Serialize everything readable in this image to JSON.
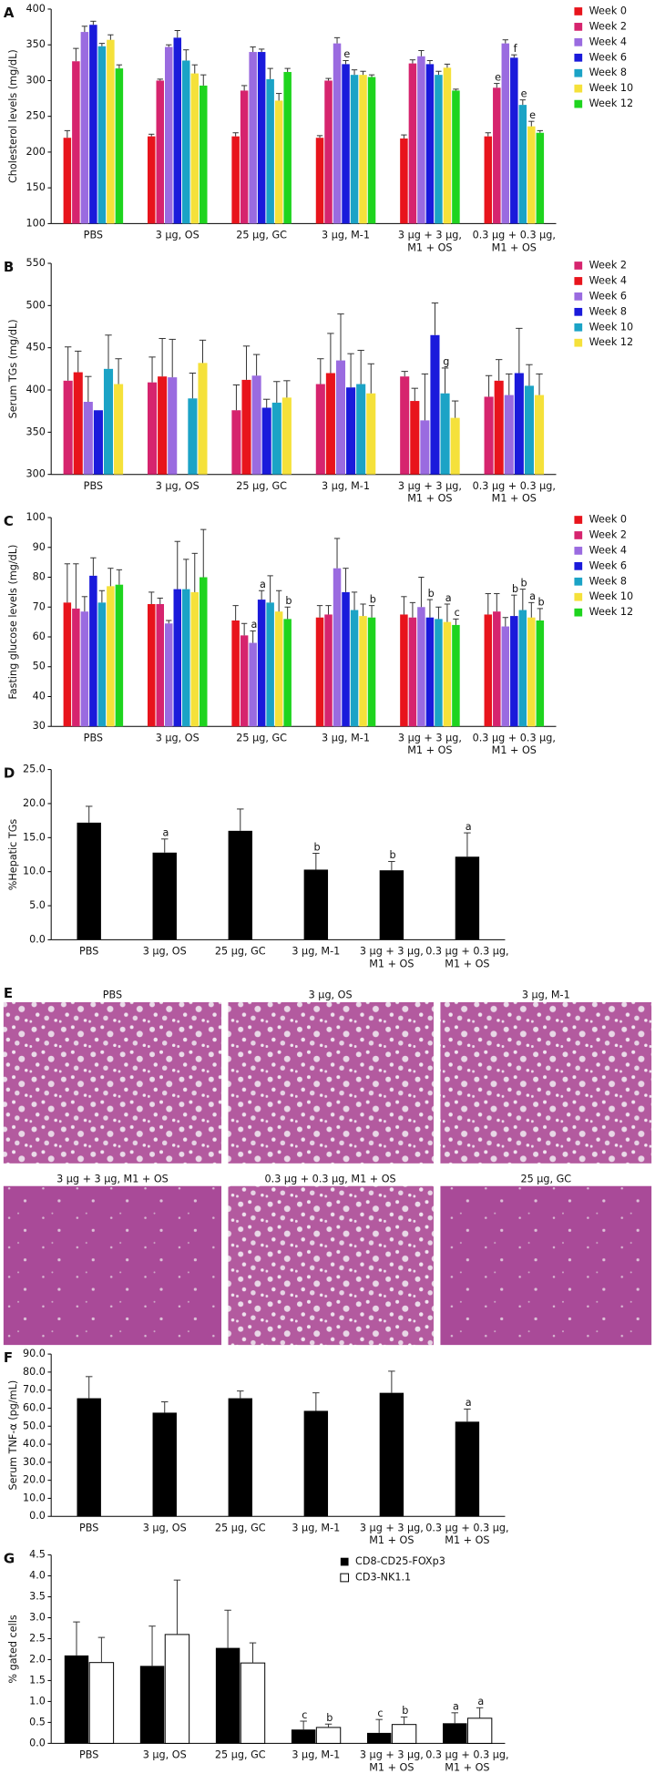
{
  "chart_data": [
    {
      "type": "bar",
      "label": "A",
      "ylabel": "Cholesterol levels (mg/dL)",
      "legend": "right",
      "categories": [
        "PBS",
        "3 µg, OS",
        "25 µg, GC",
        "3 µg, M-1",
        "3 µg + 3 µg,\nM1 + OS",
        "0.3 µg + 0.3 µg,\nM1 + OS"
      ],
      "ylim": [
        100,
        400
      ],
      "yticks": [
        100,
        150,
        200,
        250,
        300,
        350,
        400
      ],
      "series": [
        {
          "name": "Week 0",
          "color": "#e8141c",
          "values": [
            220,
            222,
            222,
            220,
            219,
            222
          ],
          "errors": [
            10,
            3,
            5,
            3,
            5,
            5
          ]
        },
        {
          "name": "Week 2",
          "color": "#d6246e",
          "values": [
            327,
            300,
            286,
            300,
            324,
            290
          ],
          "errors": [
            18,
            2,
            7,
            3,
            5,
            6
          ],
          "annotations": [
            null,
            null,
            null,
            null,
            null,
            "e"
          ]
        },
        {
          "name": "Week 4",
          "color": "#9a6be0",
          "values": [
            368,
            347,
            340,
            352,
            334,
            352
          ],
          "errors": [
            8,
            3,
            7,
            8,
            8,
            5
          ]
        },
        {
          "name": "Week 6",
          "color": "#1a1adb",
          "values": [
            378,
            360,
            340,
            323,
            323,
            332
          ],
          "errors": [
            5,
            10,
            4,
            5,
            5,
            4
          ],
          "annotations": [
            null,
            null,
            null,
            "e",
            null,
            "f"
          ]
        },
        {
          "name": "Week 8",
          "color": "#1ba3c6",
          "values": [
            348,
            328,
            302,
            308,
            308,
            266
          ],
          "errors": [
            4,
            15,
            15,
            7,
            5,
            7
          ],
          "annotations": [
            null,
            null,
            null,
            null,
            null,
            "e"
          ]
        },
        {
          "name": "Week 10",
          "color": "#f5e13a",
          "values": [
            357,
            310,
            272,
            308,
            318,
            236
          ],
          "errors": [
            7,
            12,
            10,
            5,
            5,
            7
          ],
          "annotations": [
            null,
            null,
            null,
            null,
            null,
            "e"
          ]
        },
        {
          "name": "Week 12",
          "color": "#1ed41e",
          "values": [
            317,
            293,
            312,
            305,
            286,
            227
          ],
          "errors": [
            5,
            15,
            5,
            3,
            2,
            3
          ]
        }
      ]
    },
    {
      "type": "bar",
      "label": "B",
      "ylabel": "Serum TGs (mg/dL)",
      "legend": "right",
      "categories": [
        "PBS",
        "3 µg, OS",
        "25 µg, GC",
        "3 µg, M-1",
        "3 µg + 3 µg,\nM1 + OS",
        "0.3 µg + 0.3 µg,\nM1 + OS"
      ],
      "ylim": [
        300,
        550
      ],
      "yticks": [
        300,
        350,
        400,
        450,
        500,
        550
      ],
      "series": [
        {
          "name": "Week 2",
          "color": "#d6246e",
          "values": [
            411,
            409,
            376,
            407,
            416,
            392
          ],
          "errors": [
            40,
            30,
            30,
            30,
            6,
            25
          ]
        },
        {
          "name": "Week 4",
          "color": "#e8141c",
          "values": [
            421,
            416,
            412,
            420,
            387,
            411
          ],
          "errors": [
            25,
            45,
            40,
            47,
            15,
            25
          ]
        },
        {
          "name": "Week 6",
          "color": "#9a6be0",
          "values": [
            386,
            415,
            417,
            435,
            364,
            394
          ],
          "errors": [
            30,
            45,
            25,
            55,
            55,
            25
          ]
        },
        {
          "name": "Week 8",
          "color": "#1a1adb",
          "values": [
            376,
            null,
            379,
            403,
            465,
            420
          ],
          "errors": [
            null,
            null,
            10,
            40,
            38,
            53
          ]
        },
        {
          "name": "Week 10",
          "color": "#1ba3c6",
          "values": [
            425,
            390,
            385,
            407,
            396,
            405
          ],
          "errors": [
            40,
            30,
            25,
            40,
            30,
            25
          ],
          "annotations": [
            null,
            null,
            null,
            null,
            "g",
            null
          ]
        },
        {
          "name": "Week 12",
          "color": "#f5e13a",
          "values": [
            407,
            432,
            391,
            396,
            367,
            394
          ],
          "errors": [
            30,
            27,
            20,
            35,
            20,
            25
          ]
        }
      ]
    },
    {
      "type": "bar",
      "label": "C",
      "ylabel": "Fasting glucose levels (mg/dL)",
      "legend": "right",
      "categories": [
        "PBS",
        "3 µg, OS",
        "25 µg, GC",
        "3 µg, M-1",
        "3 µg + 3 µg,\nM1 + OS",
        "0.3 µg + 0.3 µg,\nM1 + OS"
      ],
      "ylim": [
        30,
        100
      ],
      "yticks": [
        30,
        40,
        50,
        60,
        70,
        80,
        90,
        100
      ],
      "series": [
        {
          "name": "Week 0",
          "color": "#e8141c",
          "values": [
            71.5,
            71,
            65.5,
            66.5,
            67.5,
            67.5
          ],
          "errors": [
            13,
            4,
            5,
            4,
            6,
            7
          ]
        },
        {
          "name": "Week 2",
          "color": "#d6246e",
          "values": [
            69.5,
            71,
            60.5,
            67.5,
            66.5,
            68.5
          ],
          "errors": [
            15,
            2,
            4,
            3,
            5,
            6
          ]
        },
        {
          "name": "Week 4",
          "color": "#9a6be0",
          "values": [
            68.5,
            64.5,
            58,
            83,
            70,
            63.5
          ],
          "errors": [
            5,
            1,
            4,
            10,
            10,
            3
          ],
          "annotations": [
            null,
            null,
            "a",
            null,
            null,
            null
          ]
        },
        {
          "name": "Week 6",
          "color": "#1a1adb",
          "values": [
            80.5,
            76,
            72.5,
            75,
            66.5,
            67
          ],
          "errors": [
            6,
            16,
            3,
            8,
            6,
            7
          ],
          "annotations": [
            null,
            null,
            "a",
            null,
            "b",
            "b"
          ]
        },
        {
          "name": "Week 8",
          "color": "#1ba3c6",
          "values": [
            71.5,
            76,
            71.5,
            69,
            66,
            69
          ],
          "errors": [
            4,
            10,
            9,
            6,
            4,
            7
          ],
          "annotations": [
            null,
            null,
            null,
            null,
            null,
            "b"
          ]
        },
        {
          "name": "Week 10",
          "color": "#f5e13a",
          "values": [
            77,
            75,
            68.5,
            67,
            65,
            66.5
          ],
          "errors": [
            6,
            13,
            7,
            4,
            6,
            5
          ],
          "annotations": [
            null,
            null,
            null,
            null,
            "a",
            "a"
          ]
        },
        {
          "name": "Week 12",
          "color": "#1ed41e",
          "values": [
            77.5,
            80,
            66,
            66.5,
            64,
            65.5
          ],
          "errors": [
            5,
            16,
            4,
            4,
            2,
            4
          ],
          "annotations": [
            null,
            null,
            "b",
            "b",
            "c",
            "b"
          ]
        }
      ]
    },
    {
      "type": "bar",
      "label": "D",
      "ylabel": "%Hepatic TGs",
      "categories": [
        "PBS",
        "3 µg, OS",
        "25 µg, GC",
        "3 µg, M-1",
        "3 µg + 3 µg,\nM1 + OS",
        "0.3 µg + 0.3 µg,\nM1 + OS"
      ],
      "ylim": [
        0,
        25
      ],
      "yticks": [
        {
          "value": 0,
          "label": "0.0"
        },
        {
          "value": 5,
          "label": "5.0"
        },
        {
          "value": 10,
          "label": "10.0"
        },
        {
          "value": 15,
          "label": "15.0"
        },
        {
          "value": 20,
          "label": "20.0"
        },
        {
          "value": 25,
          "label": "25.0"
        }
      ],
      "series": [
        {
          "color": "#000000",
          "values": [
            17.2,
            12.8,
            16,
            10.3,
            10.2,
            12.2
          ],
          "errors": [
            2.4,
            2,
            3.2,
            2.4,
            1.3,
            3.5
          ],
          "annotations": [
            null,
            "a",
            null,
            "b",
            "b",
            "a"
          ]
        }
      ]
    },
    {
      "type": "bar",
      "label": "F",
      "ylabel": "Serum TNF-α (pg/mL)",
      "categories": [
        "PBS",
        "3 µg, OS",
        "25 µg, GC",
        "3 µg, M-1",
        "3 µg + 3 µg,\nM1 + OS",
        "0.3 µg + 0.3 µg,\nM1 + OS"
      ],
      "ylim": [
        0,
        90
      ],
      "yticks": [
        {
          "value": 0,
          "label": "0.0"
        },
        {
          "value": 10,
          "label": "10.0"
        },
        {
          "value": 20,
          "label": "20.0"
        },
        {
          "value": 30,
          "label": "30.0"
        },
        {
          "value": 40,
          "label": "40.0"
        },
        {
          "value": 50,
          "label": "50.0"
        },
        {
          "value": 60,
          "label": "60.0"
        },
        {
          "value": 70,
          "label": "70.0"
        },
        {
          "value": 80,
          "label": "80.0"
        },
        {
          "value": 90,
          "label": "90.0"
        }
      ],
      "series": [
        {
          "color": "#000000",
          "values": [
            65.5,
            57.5,
            65.5,
            58.5,
            68.5,
            52.5
          ],
          "errors": [
            12,
            6,
            4,
            10,
            12,
            7
          ],
          "annotations": [
            null,
            null,
            null,
            null,
            null,
            "a"
          ]
        }
      ]
    },
    {
      "type": "bar",
      "label": "G",
      "ylabel": "% gated cells",
      "legend": "upper right",
      "categories": [
        "PBS",
        "3 µg, OS",
        "25 µg, GC",
        "3 µg, M-1",
        "3 µg + 3 µg,\nM1 + OS",
        "0.3 µg + 0.3 µg,\nM1 + OS"
      ],
      "ylim": [
        0,
        4.5
      ],
      "yticks": [
        {
          "value": 0,
          "label": "0.0"
        },
        0.5,
        {
          "value": 1,
          "label": "1.0"
        },
        1.5,
        {
          "value": 2,
          "label": "2.0"
        },
        2.5,
        {
          "value": 3,
          "label": "3.0"
        },
        3.5,
        {
          "value": 4,
          "label": "4.0"
        },
        4.5
      ],
      "series": [
        {
          "name": "CD8-CD25-FOXp3",
          "color": "#000000",
          "values": [
            2.1,
            1.85,
            2.28,
            0.33,
            0.25,
            0.48
          ],
          "errors": [
            0.8,
            0.95,
            0.9,
            0.2,
            0.32,
            0.25
          ],
          "annotations": [
            null,
            null,
            null,
            "c",
            "c",
            "a"
          ]
        },
        {
          "name": "CD3-NK1.1",
          "color": "#ffffff",
          "values": [
            1.93,
            2.6,
            1.92,
            0.38,
            0.45,
            0.6
          ],
          "errors": [
            0.6,
            1.3,
            0.48,
            0.08,
            0.18,
            0.25
          ],
          "annotations": [
            null,
            null,
            null,
            "b",
            "b",
            "a"
          ]
        }
      ]
    }
  ],
  "micrographs": {
    "label": "E",
    "titles": [
      "PBS",
      "3 µg, OS",
      "3 µg, M-1",
      "3 µg + 3 µg, M1 + OS",
      "0.3 µg + 0.3 µg, M1 + OS",
      "25 µg, GC"
    ]
  }
}
